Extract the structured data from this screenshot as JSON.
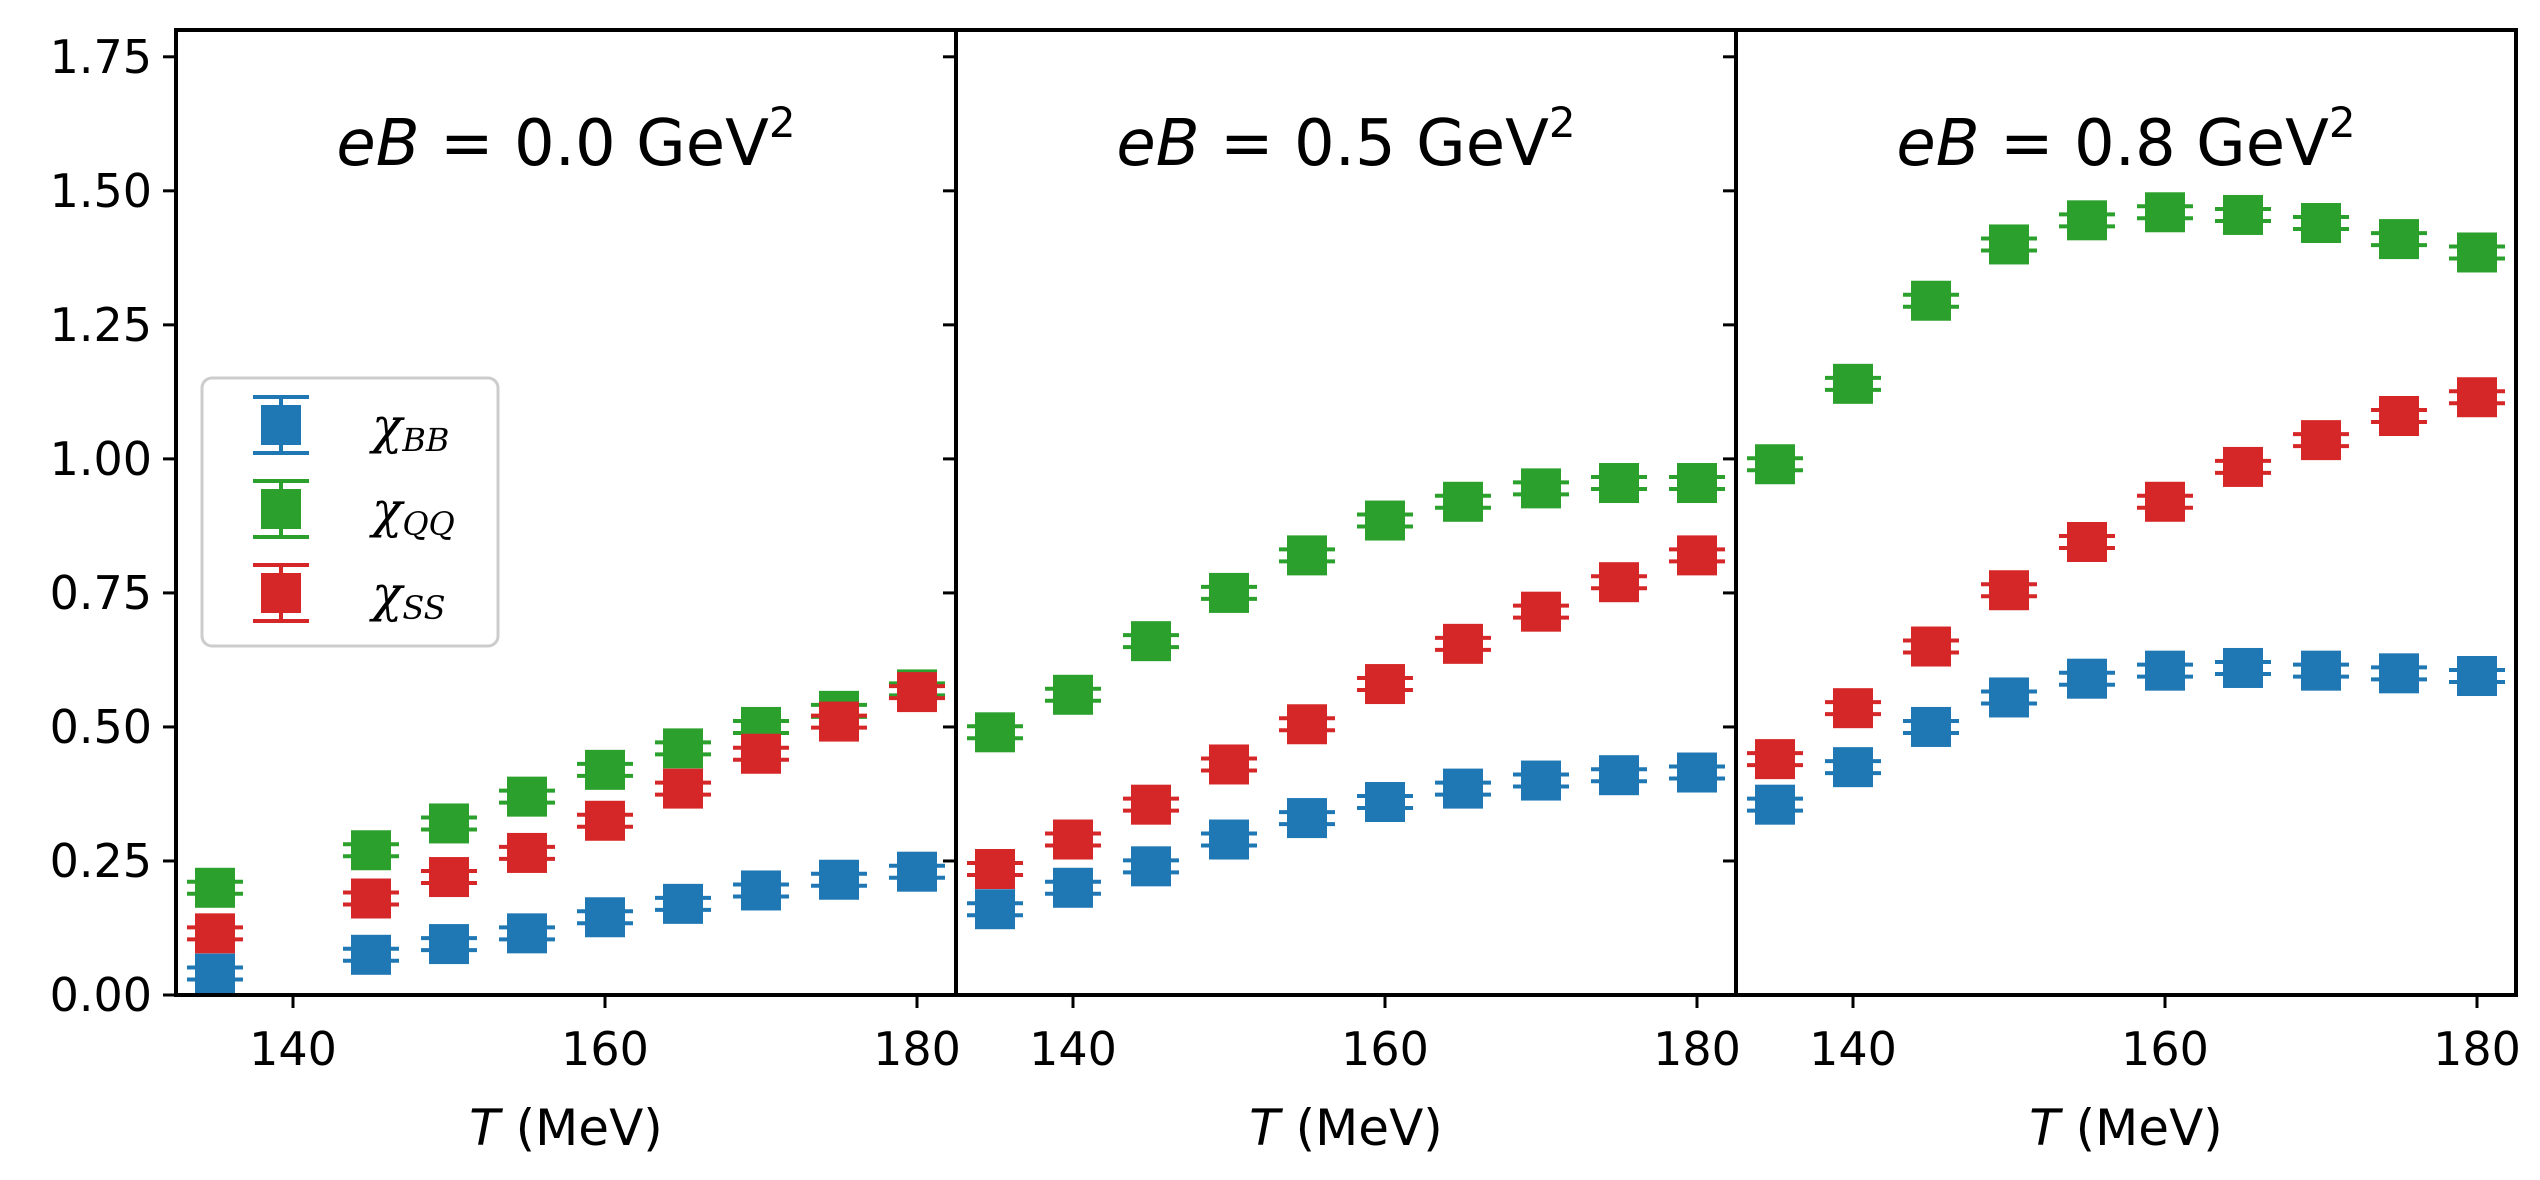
{
  "chart_data": {
    "type": "scatter",
    "layout": "three panels side by side, shared y axis",
    "ylim": [
      0.0,
      1.8
    ],
    "y_ticks": [
      "0.00",
      "0.25",
      "0.50",
      "0.75",
      "1.00",
      "1.25",
      "1.50",
      "1.75"
    ],
    "x_ticks": [
      "140",
      "160",
      "180"
    ],
    "legend": {
      "location": "left, middle of first panel",
      "entries": [
        {
          "name": "χ_BB",
          "symbol": "χ",
          "subscript": "BB",
          "color": "#1f77b4"
        },
        {
          "name": "χ_QQ",
          "symbol": "χ",
          "subscript": "QQ",
          "color": "#2ca02c"
        },
        {
          "name": "χ_SS",
          "symbol": "χ",
          "subscript": "SS",
          "color": "#d62728"
        }
      ]
    },
    "panels": [
      {
        "title_var": "eB",
        "title_eq": " = 0.0 GeV",
        "title_sup": "2",
        "xlabel_var": "T",
        "xlabel_unit": " (MeV)",
        "xlim": [
          132.5,
          182.5
        ],
        "series": [
          {
            "name": "χ_BB",
            "color": "#1f77b4",
            "x": [
              135,
              145,
              150,
              155,
              160,
              165,
              170,
              175,
              180
            ],
            "y": [
              0.04,
              0.075,
              0.095,
              0.115,
              0.145,
              0.17,
              0.195,
              0.215,
              0.23
            ]
          },
          {
            "name": "χ_QQ",
            "color": "#2ca02c",
            "x": [
              135,
              145,
              150,
              155,
              160,
              165,
              170,
              175,
              180
            ],
            "y": [
              0.2,
              0.27,
              0.32,
              0.37,
              0.42,
              0.46,
              0.5,
              0.53,
              0.57
            ]
          },
          {
            "name": "χ_SS",
            "color": "#d62728",
            "x": [
              135,
              145,
              150,
              155,
              160,
              165,
              170,
              175,
              180
            ],
            "y": [
              0.115,
              0.18,
              0.22,
              0.265,
              0.325,
              0.385,
              0.45,
              0.51,
              0.565
            ]
          }
        ]
      },
      {
        "title_var": "eB",
        "title_eq": " = 0.5 GeV",
        "title_sup": "2",
        "xlabel_var": "T",
        "xlabel_unit": " (MeV)",
        "xlim": [
          132.5,
          182.5
        ],
        "series": [
          {
            "name": "χ_BB",
            "color": "#1f77b4",
            "x": [
              135,
              140,
              145,
              150,
              155,
              160,
              165,
              170,
              175,
              180
            ],
            "y": [
              0.16,
              0.2,
              0.24,
              0.29,
              0.33,
              0.36,
              0.385,
              0.4,
              0.41,
              0.415
            ]
          },
          {
            "name": "χ_QQ",
            "color": "#2ca02c",
            "x": [
              135,
              140,
              145,
              150,
              155,
              160,
              165,
              170,
              175,
              180
            ],
            "y": [
              0.49,
              0.56,
              0.66,
              0.75,
              0.82,
              0.885,
              0.92,
              0.945,
              0.955,
              0.955
            ]
          },
          {
            "name": "χ_SS",
            "color": "#d62728",
            "x": [
              135,
              140,
              145,
              150,
              155,
              160,
              165,
              170,
              175,
              180
            ],
            "y": [
              0.235,
              0.29,
              0.355,
              0.43,
              0.505,
              0.58,
              0.655,
              0.715,
              0.77,
              0.82
            ]
          }
        ]
      },
      {
        "title_var": "eB",
        "title_eq": " = 0.8 GeV",
        "title_sup": "2",
        "xlabel_var": "T",
        "xlabel_unit": " (MeV)",
        "xlim": [
          132.5,
          182.5
        ],
        "series": [
          {
            "name": "χ_BB",
            "color": "#1f77b4",
            "x": [
              135,
              140,
              145,
              150,
              155,
              160,
              165,
              170,
              175,
              180
            ],
            "y": [
              0.355,
              0.425,
              0.5,
              0.555,
              0.59,
              0.605,
              0.61,
              0.605,
              0.6,
              0.595
            ]
          },
          {
            "name": "χ_QQ",
            "color": "#2ca02c",
            "x": [
              135,
              140,
              145,
              150,
              155,
              160,
              165,
              170,
              175,
              180
            ],
            "y": [
              0.99,
              1.14,
              1.295,
              1.4,
              1.445,
              1.46,
              1.455,
              1.44,
              1.41,
              1.385
            ]
          },
          {
            "name": "χ_SS",
            "color": "#d62728",
            "x": [
              135,
              140,
              145,
              150,
              155,
              160,
              165,
              170,
              175,
              180
            ],
            "y": [
              0.44,
              0.535,
              0.65,
              0.755,
              0.845,
              0.92,
              0.985,
              1.035,
              1.08,
              1.115
            ]
          }
        ]
      }
    ]
  }
}
